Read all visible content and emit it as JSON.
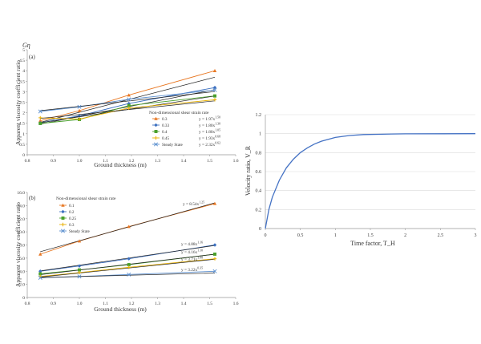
{
  "chart_data": [
    {
      "type": "line",
      "panel_label": "(a)",
      "xlabel": "Ground thickness (m)",
      "ylabel": "Apparent viscosity coefficient ratio",
      "y_unit_symbol": "Gη",
      "xlim": [
        0.8,
        1.6
      ],
      "ylim": [
        0,
        5
      ],
      "x_ticks": [
        "0.8",
        "0.9",
        "1.0",
        "1.1",
        "1.2",
        "1.3",
        "1.4",
        "1.5",
        "1.6"
      ],
      "y_ticks": [
        "0",
        "0.5",
        "1",
        "1.5",
        "2",
        "2.5",
        "3",
        "3.5",
        "4",
        "4.5",
        "5"
      ],
      "legend_title": "Non-dimensional shear strain rate",
      "legend_position": "bottom-right",
      "grid": false,
      "series": [
        {
          "name": "0.3",
          "color": "#e87722",
          "marker": "triangle",
          "x": [
            0.85,
            1.0,
            1.19,
            1.52
          ],
          "y": [
            1.62,
            2.1,
            2.84,
            4.0
          ],
          "fit": {
            "a": 1.97,
            "b": 1.5
          },
          "equation": "y = 1.97x^1.50"
        },
        {
          "name": "0.33",
          "color": "#3b6fbf",
          "marker": "diamond",
          "x": [
            0.85,
            1.0,
            1.19,
            1.52
          ],
          "y": [
            1.52,
            1.85,
            2.44,
            3.2
          ],
          "fit": {
            "a": 1.8,
            "b": 1.3
          },
          "equation": "y = 1.80x^1.30"
        },
        {
          "name": "0.4",
          "color": "#4aa02c",
          "marker": "square",
          "x": [
            0.85,
            1.0,
            1.19,
            1.52
          ],
          "y": [
            1.49,
            1.68,
            2.34,
            2.8
          ],
          "fit": {
            "a": 1.8,
            "b": 1.05
          },
          "equation": "y = 1.80x^1.05"
        },
        {
          "name": "0.45",
          "color": "#e8b000",
          "marker": "cross",
          "x": [
            0.85,
            1.0,
            1.19,
            1.52
          ],
          "y": [
            1.76,
            1.7,
            2.22,
            2.62
          ],
          "fit": {
            "a": 1.93,
            "b": 0.68
          },
          "equation": "y = 1.93x^0.68"
        },
        {
          "name": "Steady State",
          "color": "#5b8fcf",
          "marker": "x",
          "x": [
            0.85,
            1.0,
            1.19,
            1.52
          ],
          "y": [
            2.06,
            2.28,
            2.64,
            3.08
          ],
          "fit": {
            "a": 2.32,
            "b": 0.62
          },
          "equation": "y = 2.32x^0.62"
        }
      ]
    },
    {
      "type": "line",
      "panel_label": "(b)",
      "xlabel": "Ground thickness (m)",
      "ylabel": "Apparent viscosity coefficient ratio",
      "xlim": [
        0.8,
        1.6
      ],
      "ylim": [
        0,
        16
      ],
      "x_ticks": [
        "0.8",
        "0.9",
        "1.0",
        "1.1",
        "1.2",
        "1.3",
        "1.4",
        "1.5",
        "1.6"
      ],
      "y_ticks": [
        "0",
        "2.0",
        "4.0",
        "6.0",
        "8.0",
        "10.0",
        "12.0",
        "14.0",
        "16.0"
      ],
      "legend_title": "Non-dimensional shear strain rate",
      "legend_position": "top-left",
      "grid": false,
      "series": [
        {
          "name": "0.1",
          "color": "#e87722",
          "marker": "triangle",
          "x": [
            0.85,
            1.0,
            1.19,
            1.52
          ],
          "y": [
            6.6,
            8.6,
            10.8,
            14.3
          ],
          "fit": {
            "a": 8.54,
            "b": 1.25
          },
          "equation": "y = 8.54x^1.25"
        },
        {
          "name": "0.2",
          "color": "#3b6fbf",
          "marker": "diamond",
          "x": [
            0.85,
            1.0,
            1.19,
            1.52
          ],
          "y": [
            4.0,
            4.8,
            5.9,
            8.0
          ],
          "fit": {
            "a": 4.88,
            "b": 1.16
          },
          "equation": "y = 4.88x^1.16"
        },
        {
          "name": "0.25",
          "color": "#4aa02c",
          "marker": "square",
          "x": [
            0.85,
            1.0,
            1.19,
            1.52
          ],
          "y": [
            3.6,
            4.2,
            5.0,
            6.6
          ],
          "fit": {
            "a": 4.16,
            "b": 1.1
          },
          "equation": "y = 4.16x^1.10"
        },
        {
          "name": "0.3",
          "color": "#e8b000",
          "marker": "cross",
          "x": [
            0.85,
            1.0,
            1.19,
            1.52
          ],
          "y": [
            3.2,
            3.8,
            4.6,
            5.9
          ],
          "fit": {
            "a": 3.71,
            "b": 1.08
          },
          "equation": "y = 3.71x^1.08"
        },
        {
          "name": "Steady State",
          "color": "#5b8fcf",
          "marker": "x",
          "x": [
            0.85,
            1.0,
            1.19,
            1.52
          ],
          "y": [
            3.0,
            3.2,
            3.5,
            4.0
          ],
          "fit": {
            "a": 3.22,
            "b": 0.35
          },
          "equation": "y = 3.22x^0.35"
        }
      ]
    },
    {
      "type": "line",
      "xlabel": "Time factor, T_H",
      "ylabel": "Velocity ratio, V_R",
      "xlim": [
        0,
        3
      ],
      "ylim": [
        0,
        1.2
      ],
      "x_ticks": [
        "0",
        "0.5",
        "1",
        "1.5",
        "2",
        "2.5",
        "3"
      ],
      "y_ticks": [
        "0",
        "0.2",
        "0.4",
        "0.6",
        "0.8",
        "1",
        "1.2"
      ],
      "grid": true,
      "series": [
        {
          "color": "#4472c4",
          "x": [
            0,
            0.05,
            0.1,
            0.2,
            0.3,
            0.4,
            0.5,
            0.6,
            0.7,
            0.8,
            0.9,
            1.0,
            1.2,
            1.4,
            1.6,
            1.8,
            2.0,
            2.5,
            3.0
          ],
          "y": [
            0,
            0.2,
            0.33,
            0.51,
            0.64,
            0.73,
            0.8,
            0.85,
            0.89,
            0.92,
            0.94,
            0.96,
            0.98,
            0.99,
            0.993,
            0.996,
            0.998,
            0.999,
            1.0
          ]
        }
      ]
    }
  ]
}
